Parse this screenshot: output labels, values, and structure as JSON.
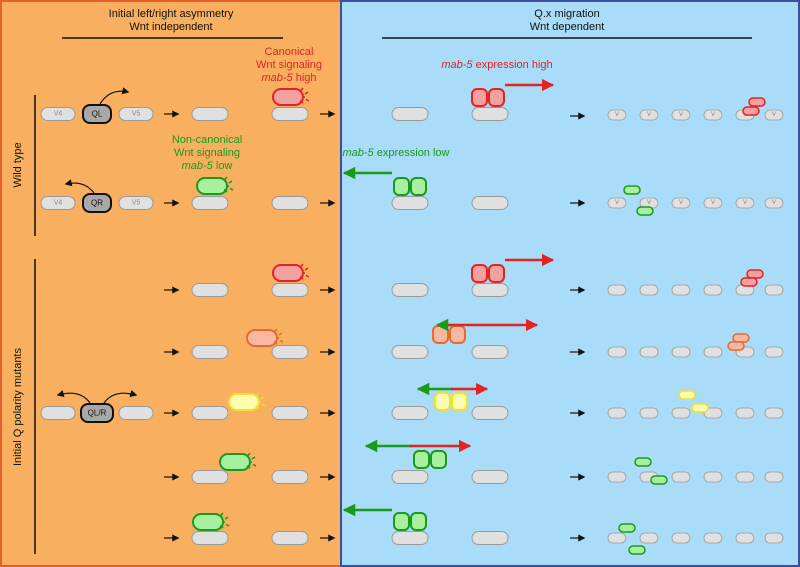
{
  "colors": {
    "left_bg": "#f8b060",
    "left_border": "#e6602c",
    "right_bg": "#a8dcf8",
    "right_border": "#3c4ea0",
    "cell_fill": "#e0e0e0",
    "cell_stroke": "#9a9a9a",
    "red": "#e02424",
    "red_fill": "#f4a0a0",
    "green": "#1a9a1a",
    "green_fill": "#a8f0a0",
    "yellow": "#f0e030",
    "yellow_fill": "#fcfcb0",
    "orange": "#e66a30",
    "orange_fill": "#f8b8a0",
    "q_fill": "#a8a8a8",
    "black": "#111111"
  },
  "left_panel": {
    "title_line1": "Initial left/right asymmetry",
    "title_line2": "Wnt independent",
    "canonical_line1": "Canonical",
    "canonical_line2": "Wnt signaling",
    "canonical_gene": "mab-5",
    "canonical_level": " high",
    "noncanonical_line1": "Non-canonical",
    "noncanonical_line2": "Wnt signaling",
    "noncanonical_gene": "mab-5",
    "noncanonical_level": " low"
  },
  "right_panel": {
    "title_line1": "Q.x migration",
    "title_line2": "Wnt dependent",
    "expr_high_gene": "mab-5",
    "expr_high_rest": " expression high",
    "expr_low_gene": "mab-5",
    "expr_low_rest": " expression low"
  },
  "side_labels": {
    "wild_type": "Wild type",
    "mutants": "Initial Q polarity mutants"
  },
  "cells": {
    "v4": "V4",
    "v5": "V5",
    "ql": "QL",
    "qr": "QR",
    "qlr": "QL/R",
    "v": "V"
  }
}
